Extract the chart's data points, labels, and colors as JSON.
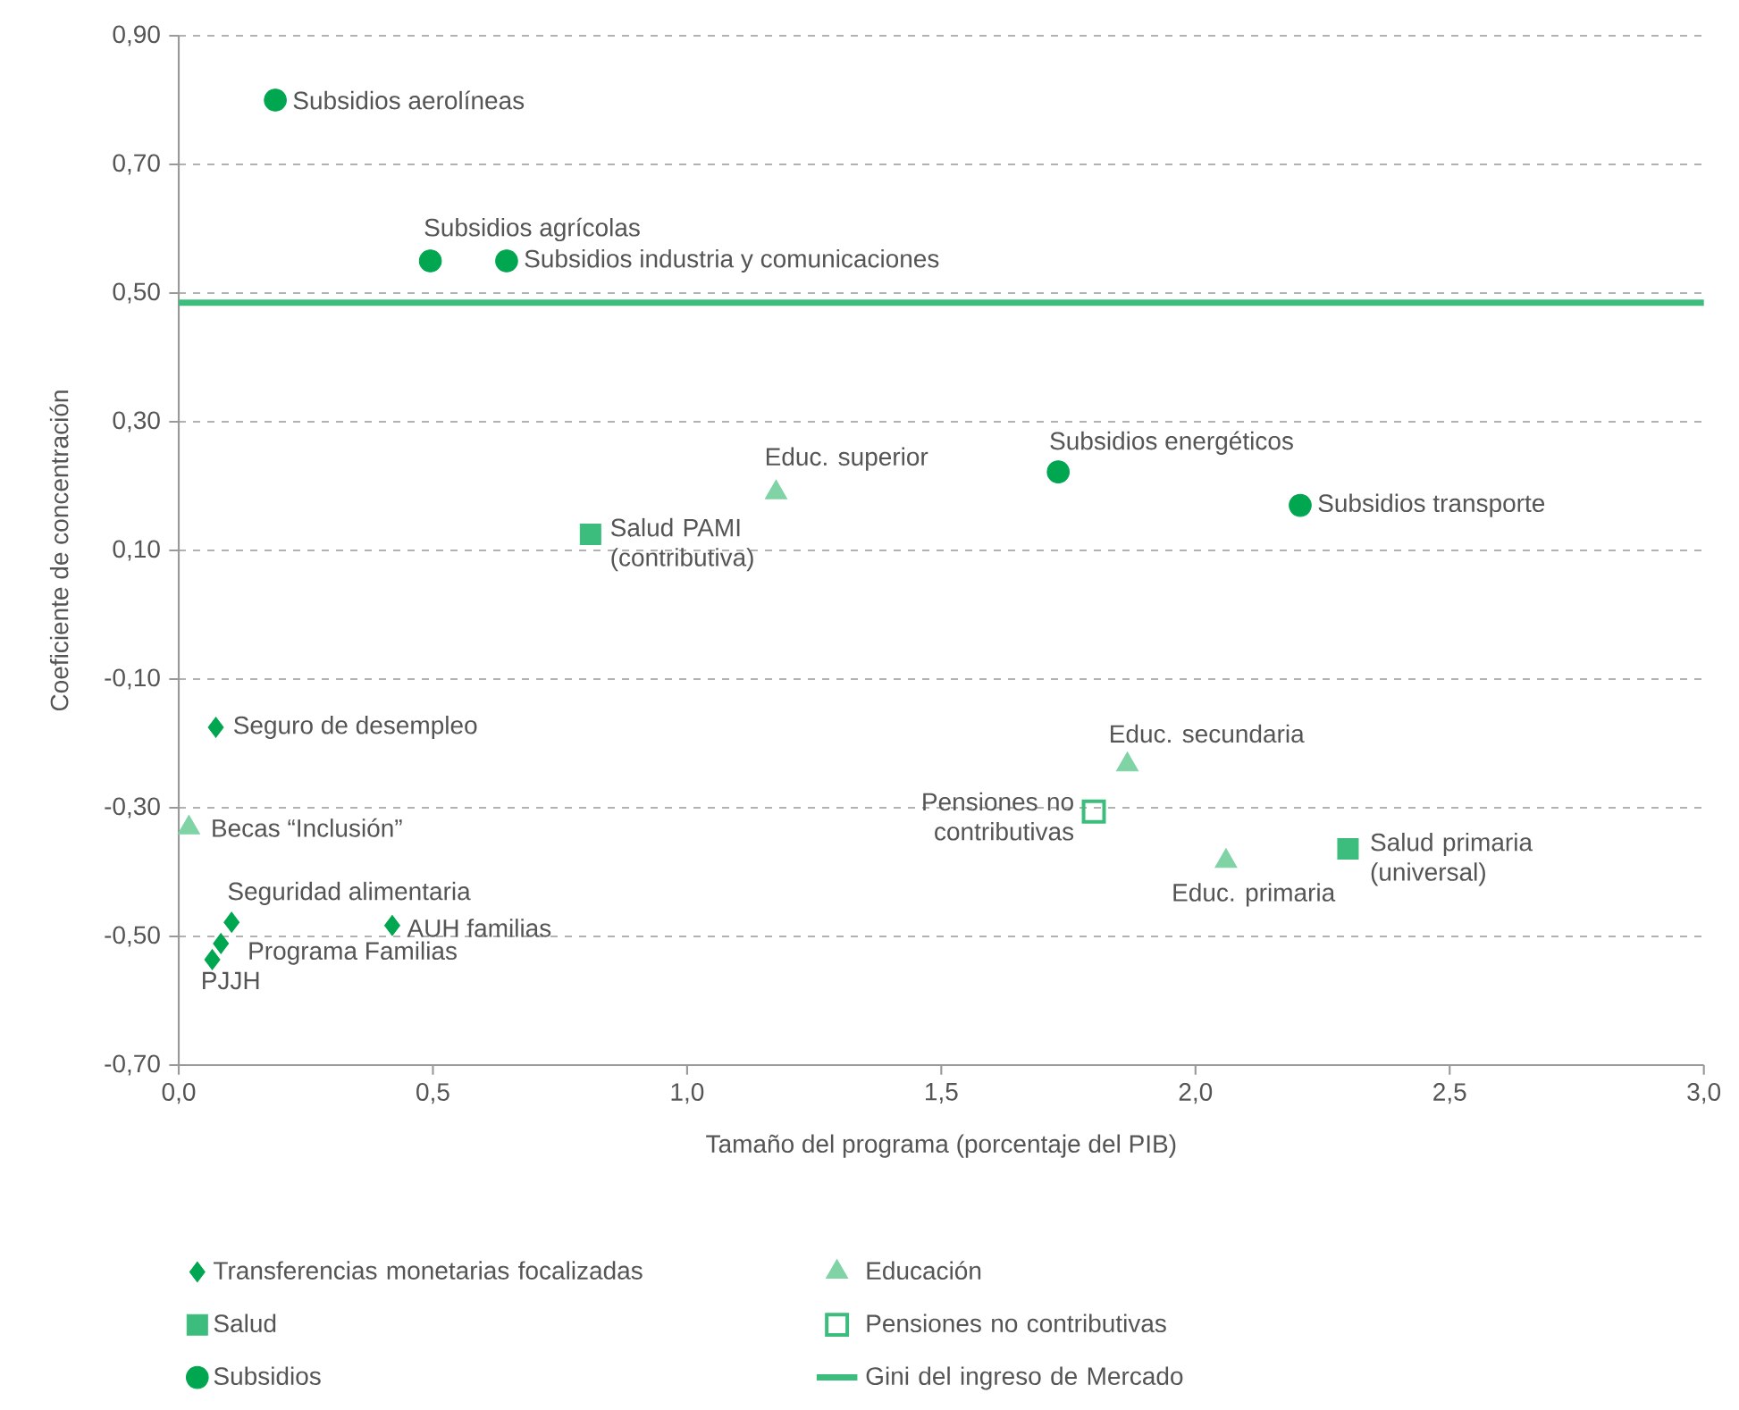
{
  "chart_data": {
    "type": "scatter",
    "xlabel": "Tamaño del programa (porcentaje del PIB)",
    "ylabel": "Coeficiente de concentración",
    "xlim": [
      0,
      3.0
    ],
    "ylim": [
      -0.7,
      0.9
    ],
    "xticks": [
      {
        "value": 0,
        "label": "0,0"
      },
      {
        "value": 0.5,
        "label": "0,5"
      },
      {
        "value": 1.0,
        "label": "1,0"
      },
      {
        "value": 1.5,
        "label": "1,5"
      },
      {
        "value": 2.0,
        "label": "2,0"
      },
      {
        "value": 2.5,
        "label": "2,5"
      },
      {
        "value": 3.0,
        "label": "3,0"
      }
    ],
    "yticks": [
      {
        "value": -0.7,
        "label": "-0,70"
      },
      {
        "value": -0.5,
        "label": "-0,50"
      },
      {
        "value": -0.3,
        "label": "-0,30"
      },
      {
        "value": -0.1,
        "label": "-0,10"
      },
      {
        "value": 0.1,
        "label": "0,10"
      },
      {
        "value": 0.3,
        "label": "0,30"
      },
      {
        "value": 0.5,
        "label": "0,50"
      },
      {
        "value": 0.7,
        "label": "0,70"
      },
      {
        "value": 0.9,
        "label": "0,90"
      }
    ],
    "grid": "y",
    "legend": "bottom",
    "series": [
      {
        "name": "Transferencias monetarias focalizadas",
        "color": "#00a650",
        "marker": "diamond",
        "x": [
          0.073,
          0.104,
          0.42,
          0.083,
          0.066
        ],
        "values": [
          -0.175,
          -0.478,
          -0.483,
          -0.511,
          -0.536
        ]
      },
      {
        "name": "Educación",
        "color": "#7fd3a5",
        "marker": "triangle",
        "x": [
          1.175,
          1.866,
          2.06,
          0.02
        ],
        "values": [
          0.19,
          -0.233,
          -0.383,
          -0.331
        ]
      },
      {
        "name": "Salud",
        "color": "#3dbd7d",
        "marker": "square",
        "x": [
          0.81,
          2.3
        ],
        "values": [
          0.125,
          -0.364
        ]
      },
      {
        "name": "Pensiones no contributivas",
        "color": "#3dbd7d",
        "marker": "square open",
        "x": [
          1.8
        ],
        "values": [
          -0.306
        ]
      },
      {
        "name": "Subsidios",
        "color": "#00a650",
        "marker": "circle",
        "x": [
          0.19,
          0.495,
          0.645,
          1.73,
          2.206
        ],
        "values": [
          0.8,
          0.55,
          0.55,
          0.222,
          0.17
        ]
      },
      {
        "name": "Gini del ingreso de Mercado",
        "type": "line",
        "color": "#3dbd7d",
        "marker": "none",
        "x": [
          0,
          3.0
        ],
        "values": [
          0.485,
          0.485
        ]
      }
    ],
    "annotations": [
      {
        "text": "Subsidios aerolíneas",
        "x": 0.19,
        "y": 0.8
      },
      {
        "text": "Subsidios agrícolas",
        "x": 0.495,
        "y": 0.55
      },
      {
        "text": "Subsidios industria y comunicaciones",
        "x": 0.645,
        "y": 0.55
      },
      {
        "text": "Subsidios energéticos",
        "x": 1.73,
        "y": 0.222
      },
      {
        "text": "Subsidios transporte",
        "x": 2.206,
        "y": 0.17
      },
      {
        "text": "Educ. superior",
        "x": 1.175,
        "y": 0.19
      },
      {
        "text": "Salud PAMI (contributiva)",
        "x": 0.81,
        "y": 0.125
      },
      {
        "text": "Educ. secundaria",
        "x": 1.866,
        "y": -0.233
      },
      {
        "text": "Pensiones no contributivas",
        "x": 1.8,
        "y": -0.306
      },
      {
        "text": "Educ. primaria",
        "x": 2.06,
        "y": -0.383
      },
      {
        "text": "Salud primaria (universal)",
        "x": 2.3,
        "y": -0.364
      },
      {
        "text": "Seguro de desempleo",
        "x": 0.073,
        "y": -0.175
      },
      {
        "text": "Becas “Inclusión”",
        "x": 0.02,
        "y": -0.331
      },
      {
        "text": "Seguridad alimentaria",
        "x": 0.104,
        "y": -0.478
      },
      {
        "text": "AUH familias",
        "x": 0.42,
        "y": -0.483
      },
      {
        "text": "Programa Familias",
        "x": 0.083,
        "y": -0.511
      },
      {
        "text": "PJJH",
        "x": 0.066,
        "y": -0.536
      }
    ]
  }
}
